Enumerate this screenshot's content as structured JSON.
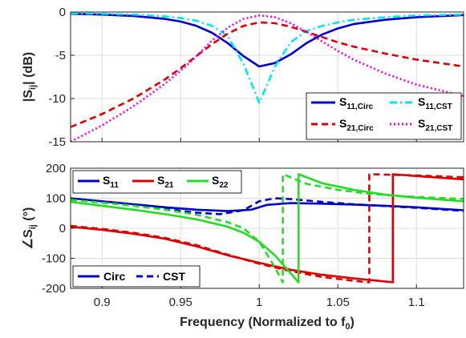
{
  "colors": {
    "s11_circ": "#0000cc",
    "s11_cst": "#00e5ee",
    "s21_circ": "#dd0000",
    "s21_cst": "#ee00ee",
    "phase_s11": "#0000cc",
    "phase_s21": "#dd0000",
    "phase_s22": "#22dd22"
  },
  "chart_data": [
    {
      "type": "line",
      "title": "",
      "xlabel": "",
      "ylabel": "|S_ij| (dB)",
      "ylabel_main": "|S",
      "ylabel_sub": "ij",
      "ylabel_tail": "| (dB)",
      "xlim": [
        0.88,
        1.13
      ],
      "ylim": [
        -15,
        0
      ],
      "xticks": [
        0.9,
        0.95,
        1,
        1.05,
        1.1
      ],
      "yticks": [
        -15,
        -10,
        -5,
        0
      ],
      "ytick_labels": [
        "-15",
        "-10",
        "-5",
        "0"
      ],
      "grid": true,
      "legend_position": "bottom-right",
      "legend": {
        "s11_circ": {
          "main": "S",
          "sub": "11,Circ"
        },
        "s11_cst": {
          "main": "S",
          "sub": "11,CST"
        },
        "s21_circ": {
          "main": "S",
          "sub": "21,Circ"
        },
        "s21_cst": {
          "main": "S",
          "sub": "21,CST"
        }
      },
      "series": [
        {
          "name": "S11,Circ",
          "style": "solid",
          "color_key": "s11_circ",
          "x": [
            0.88,
            0.9,
            0.92,
            0.94,
            0.95,
            0.96,
            0.97,
            0.98,
            0.99,
            1.0,
            1.01,
            1.02,
            1.03,
            1.04,
            1.05,
            1.06,
            1.08,
            1.1,
            1.13
          ],
          "y": [
            -0.2,
            -0.3,
            -0.45,
            -0.8,
            -1.1,
            -1.6,
            -2.4,
            -3.6,
            -5.1,
            -6.3,
            -5.9,
            -4.9,
            -3.6,
            -2.6,
            -1.9,
            -1.4,
            -0.9,
            -0.6,
            -0.35
          ]
        },
        {
          "name": "S11,CST",
          "style": "dashdot",
          "color_key": "s11_cst",
          "x": [
            0.88,
            0.9,
            0.92,
            0.94,
            0.95,
            0.96,
            0.97,
            0.98,
            0.99,
            1.0,
            1.01,
            1.02,
            1.03,
            1.04,
            1.05,
            1.06,
            1.08,
            1.1,
            1.13
          ],
          "y": [
            -0.15,
            -0.2,
            -0.3,
            -0.5,
            -0.7,
            -1.0,
            -1.6,
            -2.8,
            -6.0,
            -10.5,
            -6.3,
            -3.5,
            -2.2,
            -1.6,
            -1.2,
            -0.9,
            -0.6,
            -0.4,
            -0.3
          ]
        },
        {
          "name": "S21,Circ",
          "style": "dashed",
          "color_key": "s21_circ",
          "x": [
            0.88,
            0.9,
            0.92,
            0.94,
            0.95,
            0.96,
            0.97,
            0.98,
            0.99,
            1.0,
            1.01,
            1.02,
            1.03,
            1.04,
            1.05,
            1.06,
            1.08,
            1.1,
            1.13
          ],
          "y": [
            -13.3,
            -11.8,
            -10.0,
            -7.8,
            -6.5,
            -5.1,
            -3.7,
            -2.5,
            -1.6,
            -1.2,
            -1.3,
            -1.7,
            -2.3,
            -2.9,
            -3.5,
            -4.0,
            -4.8,
            -5.5,
            -6.3
          ]
        },
        {
          "name": "S21,CST",
          "style": "dotted",
          "color_key": "s21_cst",
          "x": [
            0.88,
            0.9,
            0.92,
            0.94,
            0.95,
            0.96,
            0.97,
            0.98,
            0.99,
            1.0,
            1.01,
            1.02,
            1.03,
            1.04,
            1.05,
            1.06,
            1.08,
            1.1,
            1.13
          ],
          "y": [
            -15.0,
            -13.1,
            -10.9,
            -8.3,
            -6.8,
            -5.1,
            -3.3,
            -1.8,
            -0.8,
            -0.4,
            -0.6,
            -1.3,
            -2.3,
            -3.4,
            -4.5,
            -5.5,
            -7.1,
            -8.4,
            -9.7
          ]
        }
      ]
    },
    {
      "type": "line",
      "title": "",
      "xlabel": "Frequency (Normalized to f_0)",
      "xlabel_main": "Frequency (Normalized to f",
      "xlabel_sub": "0",
      "xlabel_tail": ")",
      "ylabel": "∠S_ij (°)",
      "ylabel_main": "∠S",
      "ylabel_sub": "ij",
      "ylabel_tail": " (°)",
      "xlim": [
        0.88,
        1.13
      ],
      "ylim": [
        -200,
        200
      ],
      "xticks": [
        0.9,
        0.95,
        1,
        1.05,
        1.1
      ],
      "xtick_labels": [
        "0.9",
        "0.95",
        "1",
        "1.05",
        "1.1"
      ],
      "yticks": [
        -200,
        -100,
        0,
        100,
        200
      ],
      "ytick_labels": [
        "-200",
        "-100",
        "0",
        "100",
        "200"
      ],
      "grid": true,
      "legend_top": {
        "position": "top-left",
        "s11": {
          "main": "S",
          "sub": "11"
        },
        "s21": {
          "main": "S",
          "sub": "21"
        },
        "s22": {
          "main": "S",
          "sub": "22"
        }
      },
      "legend_bottom": {
        "position": "bottom-left",
        "circ": "Circ",
        "cst": "CST"
      },
      "series": [
        {
          "name": "S11 Circ",
          "style": "solid",
          "color_key": "phase_s11",
          "x": [
            0.88,
            0.9,
            0.92,
            0.94,
            0.96,
            0.98,
            0.995,
            1.0,
            1.005,
            1.02,
            1.04,
            1.06,
            1.08,
            1.1,
            1.13
          ],
          "y": [
            100,
            90,
            80,
            70,
            62,
            57,
            62,
            70,
            78,
            84,
            82,
            79,
            75,
            70,
            60
          ]
        },
        {
          "name": "S11 CST",
          "style": "dashed",
          "color_key": "phase_s11",
          "x": [
            0.88,
            0.9,
            0.92,
            0.94,
            0.96,
            0.975,
            0.99,
            1.0,
            1.01,
            1.02,
            1.04,
            1.06,
            1.08,
            1.1,
            1.13
          ],
          "y": [
            95,
            88,
            77,
            64,
            52,
            47,
            60,
            90,
            100,
            97,
            88,
            80,
            74,
            68,
            58
          ]
        },
        {
          "name": "S21 Circ",
          "style": "solid",
          "color_key": "phase_s21",
          "x": [
            0.88,
            0.9,
            0.92,
            0.94,
            0.96,
            0.98,
            1.0,
            1.02,
            1.04,
            1.06,
            1.08,
            1.085,
            1.085,
            1.1,
            1.13
          ],
          "y": [
            5,
            -5,
            -18,
            -35,
            -60,
            -90,
            -115,
            -138,
            -155,
            -167,
            -177,
            -180,
            180,
            174,
            163
          ]
        },
        {
          "name": "S21 CST",
          "style": "dashed",
          "color_key": "phase_s21",
          "x": [
            0.88,
            0.9,
            0.92,
            0.94,
            0.96,
            0.98,
            1.0,
            1.02,
            1.04,
            1.06,
            1.07,
            1.07,
            1.085,
            1.1,
            1.13
          ],
          "y": [
            8,
            -2,
            -15,
            -32,
            -56,
            -88,
            -118,
            -143,
            -162,
            -175,
            -180,
            180,
            178,
            176,
            170
          ]
        },
        {
          "name": "S22 Circ",
          "style": "solid",
          "color_key": "phase_s22",
          "x": [
            0.88,
            0.9,
            0.92,
            0.94,
            0.96,
            0.98,
            0.99,
            1.0,
            1.01,
            1.02,
            1.025,
            1.025,
            1.04,
            1.06,
            1.08,
            1.1,
            1.13
          ],
          "y": [
            88,
            75,
            62,
            47,
            30,
            5,
            -15,
            -45,
            -90,
            -150,
            -180,
            180,
            150,
            128,
            112,
            102,
            90
          ]
        },
        {
          "name": "S22 CST",
          "style": "dashed",
          "color_key": "phase_s22",
          "x": [
            0.88,
            0.9,
            0.92,
            0.94,
            0.96,
            0.98,
            0.99,
            1.0,
            1.01,
            1.015,
            1.015,
            1.03,
            1.05,
            1.07,
            1.09,
            1.11,
            1.13
          ],
          "y": [
            95,
            85,
            75,
            62,
            45,
            20,
            0,
            -45,
            -130,
            -180,
            180,
            148,
            128,
            115,
            107,
            102,
            98
          ]
        }
      ]
    }
  ]
}
